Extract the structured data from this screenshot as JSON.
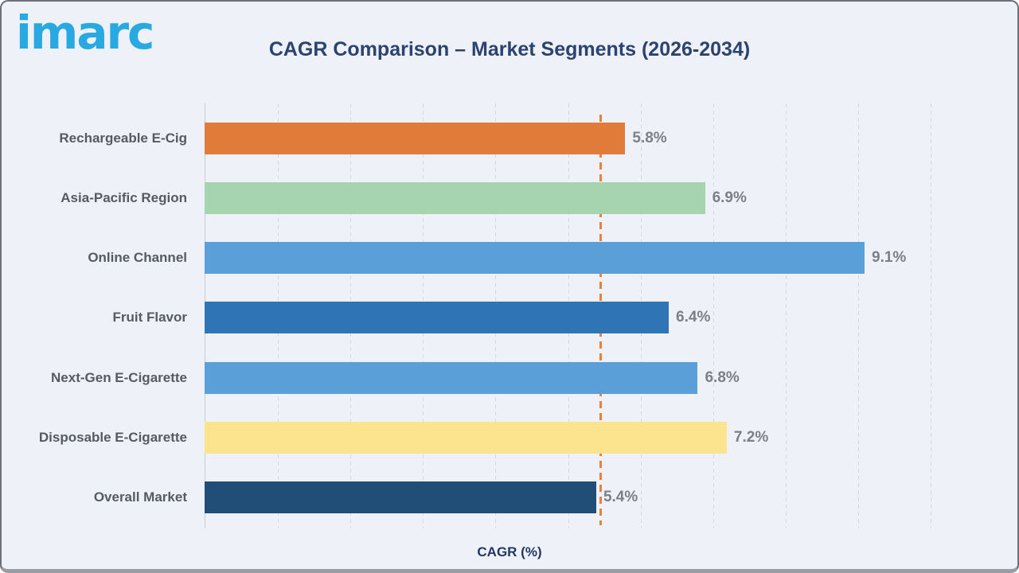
{
  "page": {
    "background_color": "#EEF1F7",
    "frame_border_color": "#6f6f78"
  },
  "header": {
    "logo_text": "imarc",
    "logo_color": "#29A9E1",
    "title": "CAGR Comparison – Market Segments (2026-2034)",
    "title_color": "#2C436F"
  },
  "chart_data": {
    "type": "bar",
    "orientation": "horizontal",
    "title": "CAGR Comparison – Market Segments (2026-2034)",
    "xlabel": "CAGR (%)",
    "ylabel": "",
    "xlim": [
      0,
      10
    ],
    "grid": true,
    "gridline_interval": 1,
    "gridline_style": "dashed",
    "categories": [
      "Rechargeable E-Cig",
      "Asia-Pacific Region",
      "Online Channel",
      "Fruit Flavor",
      "Next-Gen E-Cigarette",
      "Disposable E-Cigarette",
      "Overall Market"
    ],
    "values": [
      5.8,
      6.9,
      9.1,
      6.4,
      6.8,
      7.2,
      5.4
    ],
    "value_labels": [
      "5.8%",
      "6.9%",
      "9.1%",
      "6.4%",
      "6.8%",
      "7.2%",
      "5.4%"
    ],
    "bar_colors": [
      "#E07B39",
      "#A6D4AE",
      "#5B9FD8",
      "#2F74B5",
      "#5B9FD8",
      "#FCE48F",
      "#214E77"
    ],
    "reference_line": {
      "value": 5.4,
      "color": "#E8813A",
      "style": "dashed"
    }
  }
}
